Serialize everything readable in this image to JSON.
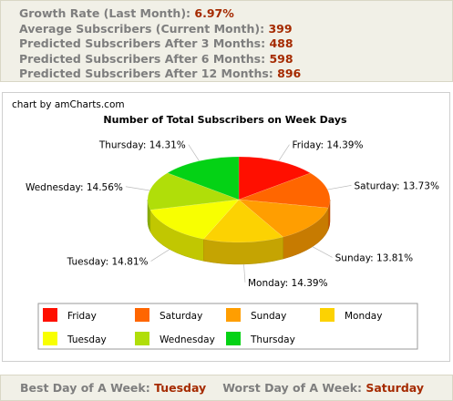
{
  "stats": [
    {
      "label": "Growth Rate (Last Month): ",
      "value": "6.97%"
    },
    {
      "label": "Average Subscribers (Current Month): ",
      "value": "399"
    },
    {
      "label": "Predicted Subscribers After 3 Months: ",
      "value": "488"
    },
    {
      "label": "Predicted Subscribers After 6 Months: ",
      "value": "598"
    },
    {
      "label": "Predicted Subscribers After 12 Months: ",
      "value": "896"
    }
  ],
  "credit": "chart by amCharts.com",
  "chart_data": {
    "type": "pie",
    "title": "Number of Total Subscribers on Week Days",
    "three_d": true,
    "legend_position": "bottom",
    "categories": [
      "Friday",
      "Saturday",
      "Sunday",
      "Monday",
      "Tuesday",
      "Wednesday",
      "Thursday"
    ],
    "values": [
      14.39,
      13.73,
      13.81,
      14.39,
      14.81,
      14.56,
      14.31
    ],
    "value_labels": [
      "14.39%",
      "13.73%",
      "13.81%",
      "14.39%",
      "14.81%",
      "14.56%",
      "14.31%"
    ],
    "colors": [
      "#ff0f00",
      "#ff6600",
      "#ff9e01",
      "#fcd202",
      "#f8ff01",
      "#b0de09",
      "#04d215"
    ]
  },
  "bottom": {
    "best_label": "Best Day of A Week: ",
    "best_value": "Tuesday",
    "worst_label": "Worst Day of A Week: ",
    "worst_value": "Saturday"
  },
  "accent_color": "#a52a00"
}
